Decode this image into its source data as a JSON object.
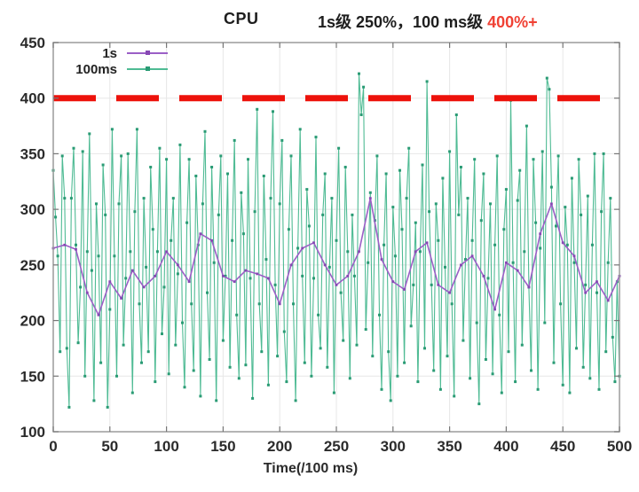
{
  "header": {
    "cpu_label": "CPU",
    "subtitle_black": "1s级 250%，100 ms级 ",
    "subtitle_red": "400%+",
    "subtitle_red_color": "#f04134"
  },
  "x_axis_title": "Time(/100 ms)",
  "colors": {
    "plot_border": "#9c9c9c",
    "grid": "#e7e7e7",
    "tick": "#777777",
    "tick_text": "#2b2b2b",
    "threshold_red": "#ed120b"
  },
  "chart_data": {
    "type": "line",
    "title": "CPU  1s级 250%，100 ms级 400%+",
    "x_label": "Time(/100 ms)",
    "x_range": [
      0,
      500
    ],
    "y_range": [
      100,
      450
    ],
    "x_ticks": [
      0,
      50,
      100,
      150,
      200,
      250,
      300,
      350,
      400,
      450,
      500
    ],
    "y_ticks": [
      100,
      150,
      200,
      250,
      300,
      350,
      400,
      450
    ],
    "grid": true,
    "legend_position": "top-left-inside",
    "threshold_line": {
      "y": 400,
      "color": "#ed120b",
      "style": "dashed",
      "width": 7
    },
    "series": [
      {
        "name": "1s",
        "color": "#9b5fc6",
        "marker_color": "#8748b4",
        "line_width": 1.6,
        "x_start": 0,
        "x_step": 10,
        "values": [
          265,
          268,
          264,
          225,
          205,
          235,
          220,
          245,
          230,
          240,
          262,
          250,
          235,
          278,
          272,
          240,
          235,
          245,
          242,
          238,
          215,
          250,
          265,
          270,
          250,
          232,
          240,
          262,
          310,
          255,
          235,
          228,
          262,
          270,
          232,
          225,
          250,
          258,
          240,
          210,
          252,
          245,
          230,
          278,
          305,
          270,
          258,
          225,
          235,
          218,
          240
        ]
      },
      {
        "name": "100ms",
        "color": "#4fbb94",
        "marker_color": "#2a9b74",
        "line_width": 1.1,
        "x_start": 0,
        "x_step": 2,
        "values": [
          335,
          293,
          258,
          172,
          348,
          310,
          175,
          122,
          310,
          355,
          268,
          180,
          230,
          352,
          150,
          262,
          368,
          245,
          128,
          305,
          258,
          162,
          340,
          295,
          122,
          210,
          372,
          258,
          150,
          305,
          348,
          178,
          238,
          350,
          262,
          135,
          298,
          372,
          215,
          162,
          310,
          248,
          172,
          338,
          282,
          145,
          262,
          355,
          188,
          230,
          345,
          152,
          272,
          310,
          178,
          242,
          358,
          198,
          140,
          288,
          345,
          215,
          155,
          330,
          268,
          132,
          305,
          370,
          225,
          165,
          338,
          252,
          128,
          295,
          348,
          182,
          240,
          332,
          158,
          272,
          362,
          205,
          148,
          315,
          278,
          160,
          345,
          238,
          130,
          298,
          390,
          215,
          172,
          330,
          255,
          142,
          310,
          388,
          232,
          168,
          305,
          362,
          190,
          145,
          282,
          348,
          215,
          128,
          265,
          372,
          240,
          162,
          318,
          285,
          150,
          238,
          365,
          205,
          175,
          295,
          332,
          158,
          248,
          310,
          135,
          272,
          355,
          225,
          182,
          338,
          262,
          148,
          295,
          240,
          178,
          422,
          385,
          410,
          192,
          252,
          315,
          168,
          290,
          348,
          205,
          138,
          268,
          332,
          172,
          128,
          302,
          258,
          150,
          335,
          282,
          162,
          310,
          355,
          195,
          232,
          288,
          145,
          262,
          340,
          175,
          415,
          298,
          232,
          155,
          305,
          272,
          138,
          328,
          248,
          168,
          352,
          215,
          132,
          385,
          295,
          338,
          182,
          255,
          310,
          148,
          272,
          345,
          198,
          125,
          290,
          332,
          165,
          238,
          305,
          152,
          268,
          348,
          205,
          135,
          282,
          318,
          172,
          398,
          252,
          145,
          308,
          335,
          178,
          262,
          375,
          230,
          155,
          345,
          288,
          138,
          265,
          352,
          198,
          418,
          408,
          320,
          162,
          285,
          348,
          215,
          142,
          302,
          268,
          135,
          328,
          252,
          175,
          345,
          295,
          158,
          232,
          312,
          148,
          268,
          350,
          225,
          138,
          298,
          350,
          172,
          252,
          310,
          185,
          145,
          235,
          150
        ]
      }
    ]
  }
}
